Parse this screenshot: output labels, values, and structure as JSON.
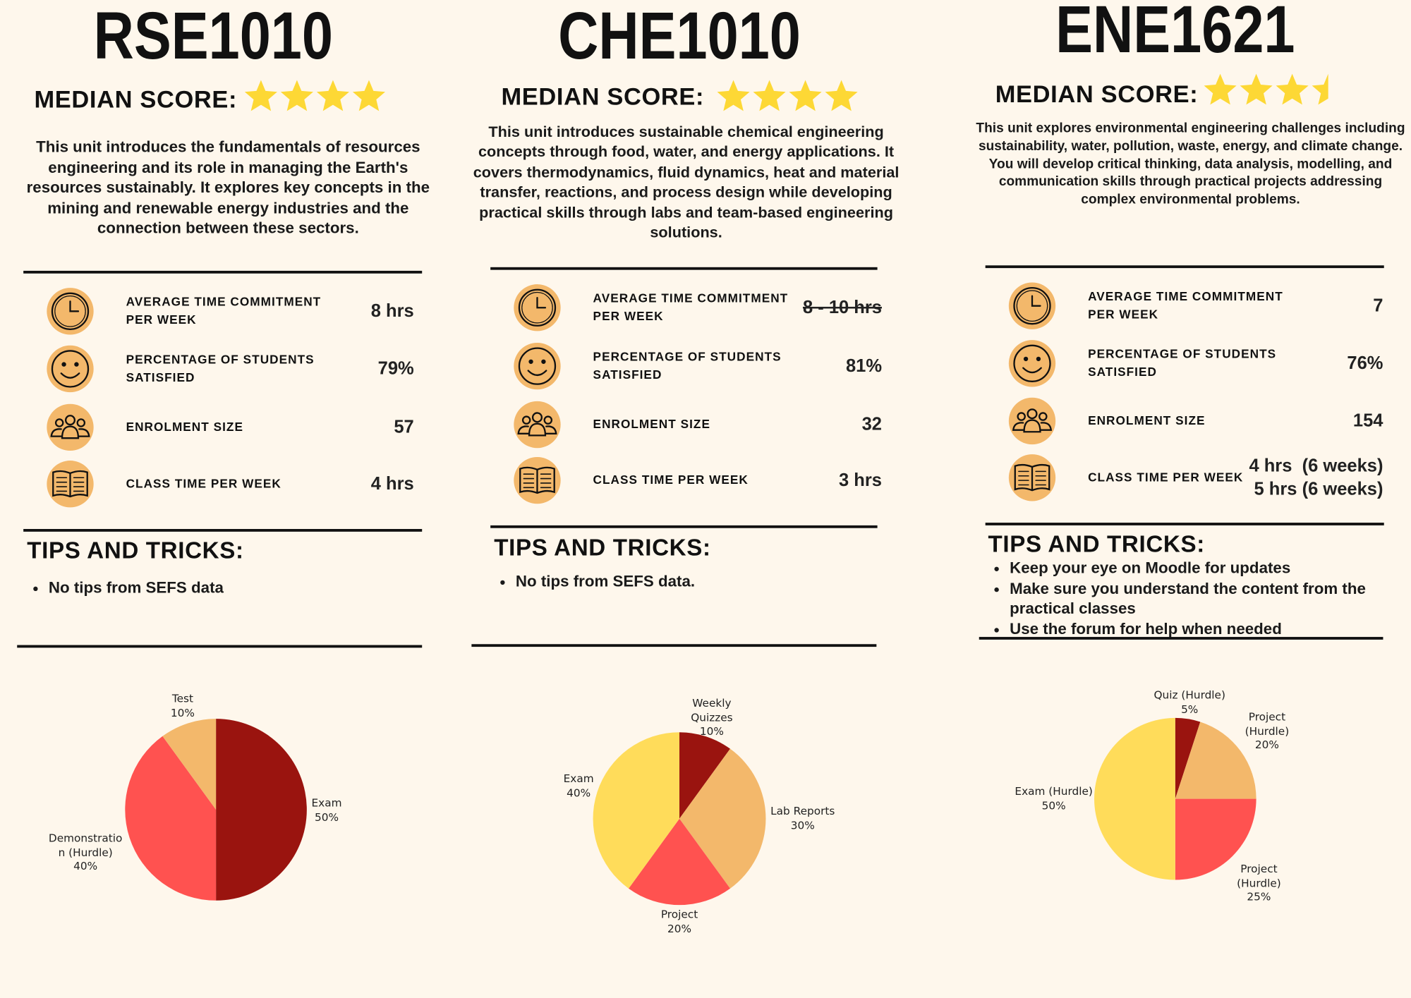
{
  "units": [
    {
      "title": "RSE1010",
      "median_label": "MEDIAN SCORE:",
      "stars": 4,
      "description": "This unit introduces the fundamentals of resources engineering and its role in managing the Earth's resources sustainably. It explores key concepts in the mining and renewable energy industries and the connection between these sectors.",
      "stats": [
        {
          "label": "AVERAGE TIME COMMITMENT PER WEEK",
          "value": [
            "8 hrs"
          ]
        },
        {
          "label": "PERCENTAGE OF STUDENTS SATISFIED",
          "value": [
            "79%"
          ]
        },
        {
          "label": "ENROLMENT SIZE",
          "value": [
            "57"
          ]
        },
        {
          "label": "CLASS TIME PER WEEK",
          "value": [
            "4 hrs"
          ]
        }
      ],
      "tips_title": "TIPS AND TRICKS:",
      "tips": [
        "No tips from SEFS data"
      ]
    },
    {
      "title": "CHE1010",
      "median_label": "MEDIAN SCORE:",
      "stars": 4,
      "description": "This unit introduces sustainable chemical engineering concepts through food, water, and energy applications. It covers thermodynamics, fluid dynamics, heat and material transfer, reactions, and process design while developing practical skills through labs and team-based engineering solutions.",
      "stats": [
        {
          "label": "AVERAGE TIME COMMITMENT PER WEEK",
          "value": [
            "8 - 10 hrs"
          ]
        },
        {
          "label": "PERCENTAGE OF STUDENTS SATISFIED",
          "value": [
            "81%"
          ]
        },
        {
          "label": "ENROLMENT SIZE",
          "value": [
            "32"
          ]
        },
        {
          "label": "CLASS TIME PER WEEK",
          "value": [
            "3 hrs"
          ]
        }
      ],
      "tips_title": "TIPS AND TRICKS:",
      "tips": [
        "No tips from SEFS data."
      ]
    },
    {
      "title": "ENE1621",
      "median_label": "MEDIAN SCORE:",
      "stars": 3.5,
      "description": "This unit explores environmental engineering challenges including sustainability, water, pollution, waste, energy, and climate change. You will develop critical thinking, data analysis, modelling, and communication skills through practical projects addressing complex environmental problems.",
      "stats": [
        {
          "label": "AVERAGE TIME COMMITMENT PER WEEK",
          "value": [
            "7"
          ]
        },
        {
          "label": "PERCENTAGE OF STUDENTS SATISFIED",
          "value": [
            "76%"
          ]
        },
        {
          "label": "ENROLMENT SIZE",
          "value": [
            "154"
          ]
        },
        {
          "label": "CLASS TIME PER WEEK",
          "value": [
            "4 hrs  (6 weeks)",
            "5 hrs (6 weeks)"
          ]
        }
      ],
      "tips_title": "TIPS AND TRICKS:",
      "tips": [
        "Keep your eye on Moodle for updates",
        "Make sure you understand the content from the practical classes",
        "Use the forum for help when needed"
      ]
    }
  ],
  "chart_data": [
    {
      "type": "pie",
      "categories": [
        "Exam",
        "Demonstration (Hurdle)",
        "Test"
      ],
      "values": [
        50,
        40,
        10
      ],
      "value_labels": [
        "50%",
        "40%",
        "10%"
      ],
      "colors": [
        "#9a140f",
        "#ff5250",
        "#f3b86b"
      ]
    },
    {
      "type": "pie",
      "categories": [
        "Weekly Quizzes",
        "Lab Reports",
        "Project",
        "Exam"
      ],
      "values": [
        10,
        30,
        20,
        40
      ],
      "value_labels": [
        "10%",
        "30%",
        "20%",
        "40%"
      ],
      "colors": [
        "#9a140f",
        "#f3b86b",
        "#ff5250",
        "#ffdc5a"
      ]
    },
    {
      "type": "pie",
      "categories": [
        "Quiz (Hurdle)",
        "Project (Hurdle)",
        "Project (Hurdle)",
        "Exam (Hurdle)"
      ],
      "values": [
        5,
        20,
        25,
        50
      ],
      "value_labels": [
        "5%",
        "20%",
        "25%",
        "50%"
      ],
      "colors": [
        "#9a140f",
        "#f3b86b",
        "#ff5250",
        "#ffdc5a"
      ]
    }
  ]
}
